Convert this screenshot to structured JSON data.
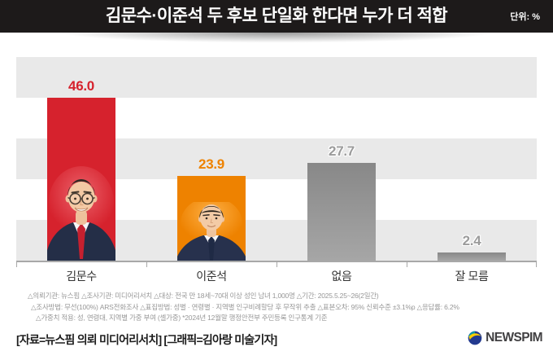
{
  "header": {
    "title": "김문수·이준석 두 후보 단일화 한다면 누가 더 적합",
    "unit_label": "단위: %"
  },
  "chart_data": {
    "type": "bar",
    "title": "김문수·이준석 두 후보 단일화 한다면 누가 더 적합",
    "unit": "%",
    "categories": [
      "김문수",
      "이준석",
      "없음",
      "잘 모름"
    ],
    "values": [
      46.0,
      23.9,
      27.7,
      2.4
    ],
    "value_labels": [
      "46.0",
      "23.9",
      "27.7",
      "2.4"
    ],
    "ylim": [
      0,
      57.5
    ],
    "grid": "horizontal-stripes",
    "legend": "none",
    "stripe_color": "#e9e9e9",
    "axis_color": "#a8a8a8",
    "bar_styles": [
      {
        "color": "#d6222d",
        "label_color": "#d6222d",
        "outline": false
      },
      {
        "color": "#ee8200",
        "label_color": "#ee8200",
        "outline": false
      },
      {
        "color_top": "#888888",
        "color_bottom": "#a6a6a6",
        "label_color": "#9b9b9b",
        "outline": true
      },
      {
        "color_top": "#888888",
        "color_bottom": "#a6a6a6",
        "label_color": "#9b9b9b",
        "outline": true
      }
    ]
  },
  "footnotes": {
    "line1": "△의뢰기관: 뉴스핌  △조사기관: 미디어리서치  △대상: 전국 만 18세~70대 이상 성인 남녀 1,000명  △기간: 2025.5.25~26(2일간)",
    "line2": "△조사방법: 무선(100%) ARS전화조사  △표집방법: 성별 · 연령별 · 지역별 인구비례할당 후 무작위 추출  △표본오차: 95% 신뢰수준 ±3.1%p  △응답률: 6.2%",
    "line3": "△가중치 적용: 성, 연령대, 지역별 가중 부여 (셀가중) *2024년 12월말 행정안전부 주민등록 인구통계 기준"
  },
  "footer": {
    "credit": "[자료=뉴스핌 의뢰 미디어리서치] [그래픽=김아랑 미술기자]",
    "brand": "NEWSPIM"
  }
}
